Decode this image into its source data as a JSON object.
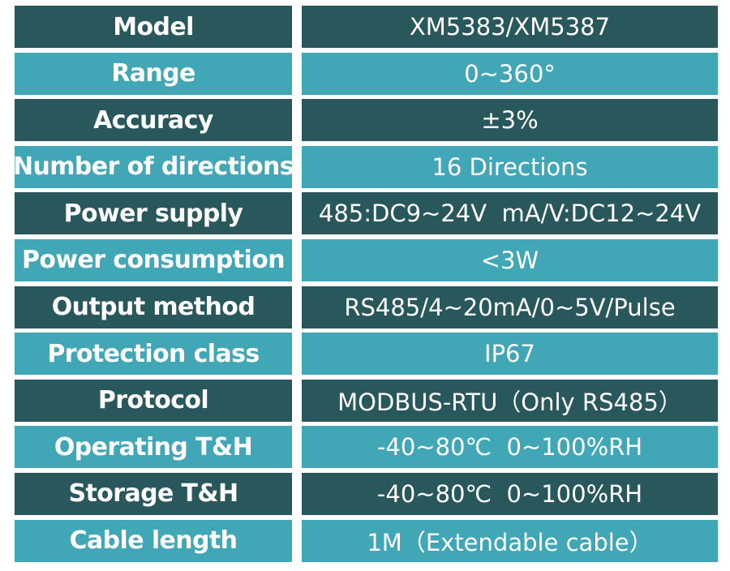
{
  "specs": {
    "rows": [
      {
        "label": "Model",
        "value": "XM5383/XM5387"
      },
      {
        "label": "Range",
        "value": "0~360°"
      },
      {
        "label": "Accuracy",
        "value": "±3%"
      },
      {
        "label": "Number of directions",
        "value": "16 Directions"
      },
      {
        "label": "Power supply",
        "value": "485:DC9~24V  mA/V:DC12~24V"
      },
      {
        "label": "Power consumption",
        "value": "<3W"
      },
      {
        "label": "Output method",
        "value": "RS485/4~20mA/0~5V/Pulse"
      },
      {
        "label": "Protection class",
        "value": "IP67"
      },
      {
        "label": "Protocol",
        "value": "MODBUS-RTU（Only RS485）"
      },
      {
        "label": "Operating T&H",
        "value": "-40~80℃  0~100%RH"
      },
      {
        "label": "Storage T&H",
        "value": "-40~80℃  0~100%RH"
      },
      {
        "label": "Cable length",
        "value": "1M（Extendable cable）"
      }
    ]
  },
  "colors": {
    "dark": "#28575c",
    "light": "#41a7b6",
    "text": "#ffffff"
  }
}
